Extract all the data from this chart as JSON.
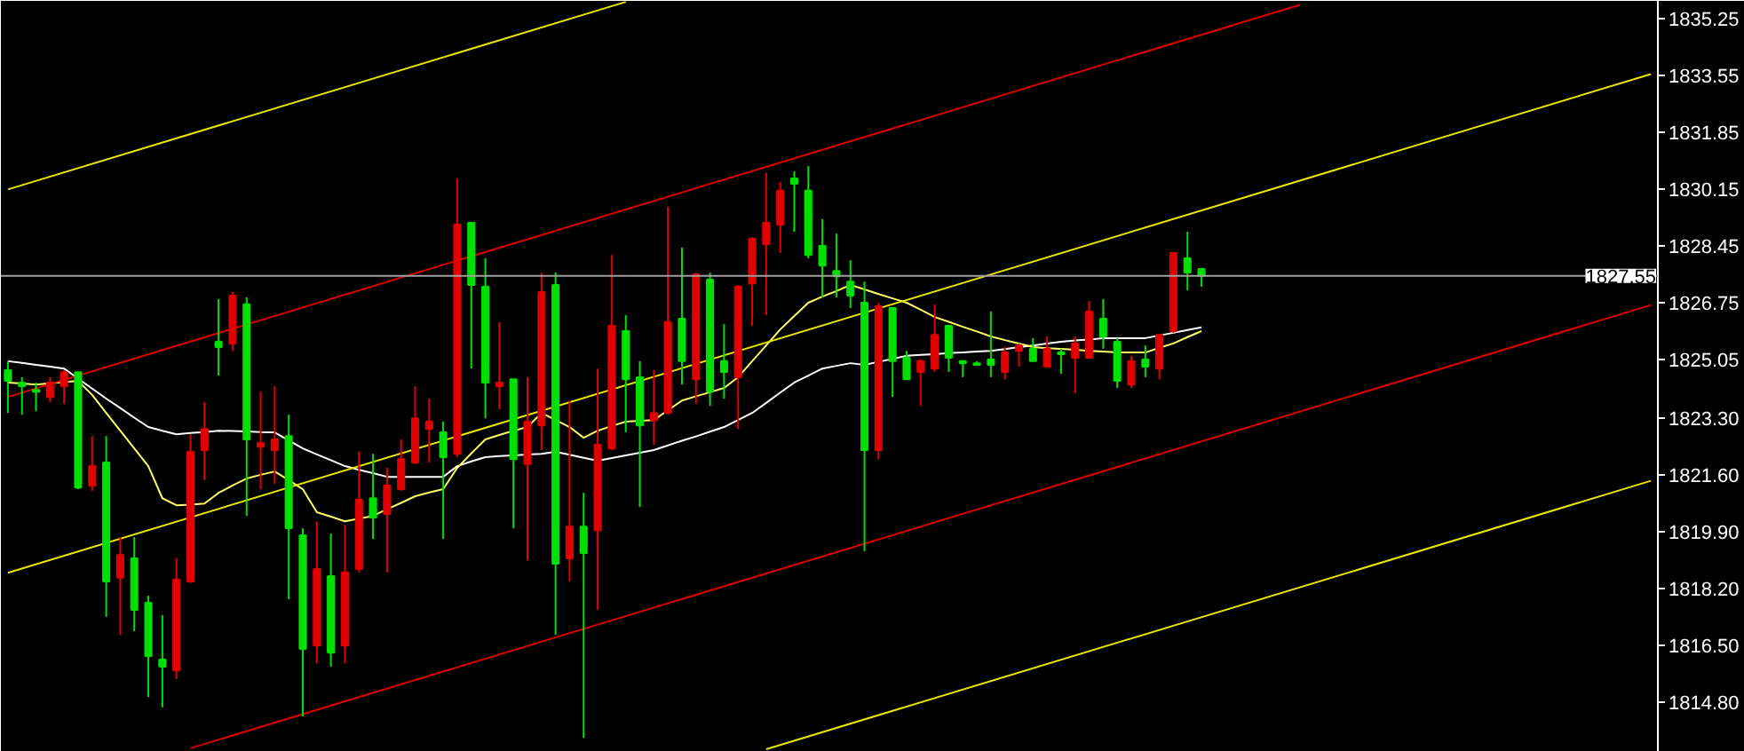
{
  "chart_data": {
    "type": "candlestick",
    "categories": [
      null,
      null,
      null,
      null,
      null,
      null,
      null,
      null,
      null,
      null,
      null,
      null,
      null,
      null,
      null,
      null,
      null,
      null,
      null,
      null,
      null,
      null,
      null,
      null,
      null,
      null,
      null,
      null,
      null,
      null,
      null,
      null,
      null,
      null,
      null,
      null,
      null,
      null,
      null,
      null,
      null,
      null,
      null,
      null,
      null,
      null,
      null,
      null,
      null,
      null,
      null,
      null,
      null,
      null,
      null,
      null,
      null,
      null,
      null,
      null,
      null,
      null,
      null,
      null,
      null,
      null,
      null,
      null,
      null,
      null,
      null,
      null,
      null,
      null,
      null,
      null,
      null,
      null,
      null,
      null,
      null,
      null,
      null,
      null,
      null,
      null,
      null,
      null,
      null,
      null,
      null,
      null,
      null,
      null,
      null,
      null,
      null,
      null,
      null,
      null,
      null,
      null,
      null,
      null,
      null,
      null,
      null,
      null,
      null,
      null,
      null,
      null,
      null,
      null,
      null,
      null,
      null,
      null
    ],
    "ohlc": [
      [
        1824.73,
        1825.0,
        1823.45,
        1824.41
      ],
      [
        1824.36,
        1824.52,
        1823.4,
        1824.25
      ],
      [
        1824.14,
        1824.36,
        1823.5,
        1824.09
      ],
      [
        1823.93,
        1824.52,
        1823.77,
        1824.36
      ],
      [
        1824.25,
        1824.73,
        1823.72,
        1824.67
      ],
      [
        1824.67,
        1824.67,
        1821.17,
        1821.22
      ],
      [
        1821.28,
        1822.76,
        1821.12,
        1821.86
      ],
      [
        1821.97,
        1822.76,
        1817.35,
        1818.41
      ],
      [
        1818.52,
        1819.74,
        1816.81,
        1819.2
      ],
      [
        1819.1,
        1819.74,
        1816.92,
        1817.56
      ],
      [
        1817.77,
        1817.98,
        1814.95,
        1816.18
      ],
      [
        1816.07,
        1817.4,
        1814.64,
        1815.86
      ],
      [
        1815.75,
        1819.1,
        1815.49,
        1818.46
      ],
      [
        1818.41,
        1822.81,
        1818.36,
        1822.29
      ],
      [
        1822.34,
        1823.77,
        1821.44,
        1822.97
      ],
      [
        1825.58,
        1826.86,
        1824.57,
        1825.42
      ],
      [
        1825.53,
        1827.07,
        1825.31,
        1826.96
      ],
      [
        1826.7,
        1826.91,
        1820.37,
        1822.66
      ],
      [
        1822.44,
        1824.09,
        1821.17,
        1822.55
      ],
      [
        1822.34,
        1824.25,
        1821.33,
        1822.66
      ],
      [
        1822.76,
        1823.4,
        1817.88,
        1820.0
      ],
      [
        1819.79,
        1820.0,
        1814.37,
        1816.39
      ],
      [
        1816.49,
        1820.21,
        1815.96,
        1818.78
      ],
      [
        1818.57,
        1819.84,
        1815.86,
        1816.28
      ],
      [
        1816.49,
        1820.11,
        1815.96,
        1818.68
      ],
      [
        1818.78,
        1822.29,
        1818.68,
        1820.85
      ],
      [
        1820.9,
        1822.23,
        1819.68,
        1820.32
      ],
      [
        1820.43,
        1821.81,
        1818.68,
        1821.28
      ],
      [
        1821.17,
        1822.66,
        1821.12,
        1822.07
      ],
      [
        1821.97,
        1824.25,
        1821.92,
        1823.29
      ],
      [
        1822.97,
        1823.88,
        1821.97,
        1823.19
      ],
      [
        1822.87,
        1823.19,
        1819.68,
        1822.13
      ],
      [
        1822.23,
        1830.47,
        1822.13,
        1829.09
      ],
      [
        1829.14,
        1829.14,
        1824.78,
        1827.28
      ],
      [
        1827.23,
        1828.08,
        1823.29,
        1824.36
      ],
      [
        1824.25,
        1826.17,
        1823.56,
        1824.36
      ],
      [
        1824.46,
        1824.46,
        1820.0,
        1822.07
      ],
      [
        1821.92,
        1824.52,
        1819.04,
        1823.19
      ],
      [
        1823.08,
        1827.65,
        1822.34,
        1827.07
      ],
      [
        1827.28,
        1827.65,
        1816.81,
        1818.94
      ],
      [
        1819.1,
        1823.82,
        1818.41,
        1820.05
      ],
      [
        1820.05,
        1821.06,
        1813.73,
        1819.26
      ],
      [
        1819.94,
        1824.78,
        1817.56,
        1822.5
      ],
      [
        1822.39,
        1828.18,
        1822.34,
        1826.06
      ],
      [
        1825.9,
        1826.38,
        1822.87,
        1824.46
      ],
      [
        1824.52,
        1825.0,
        1820.64,
        1823.08
      ],
      [
        1823.24,
        1824.73,
        1822.5,
        1823.45
      ],
      [
        1823.45,
        1829.62,
        1823.4,
        1826.17
      ],
      [
        1826.27,
        1828.4,
        1824.3,
        1825.0
      ],
      [
        1824.46,
        1827.65,
        1823.72,
        1827.6
      ],
      [
        1827.44,
        1827.65,
        1823.66,
        1824.09
      ],
      [
        1825.0,
        1826.11,
        1823.88,
        1824.68
      ],
      [
        1824.52,
        1827.28,
        1822.97,
        1827.23
      ],
      [
        1827.33,
        1828.71,
        1826.06,
        1828.66
      ],
      [
        1828.5,
        1830.63,
        1826.38,
        1829.14
      ],
      [
        1829.09,
        1830.36,
        1828.24,
        1830.1
      ],
      [
        1830.47,
        1830.68,
        1828.87,
        1830.31
      ],
      [
        1830.1,
        1830.84,
        1828.08,
        1828.18
      ],
      [
        1828.45,
        1829.25,
        1826.91,
        1827.86
      ],
      [
        1827.7,
        1828.82,
        1826.91,
        1827.54
      ],
      [
        1827.38,
        1828.02,
        1826.59,
        1826.96
      ],
      [
        1826.75,
        1827.38,
        1819.31,
        1822.34
      ],
      [
        1822.34,
        1826.75,
        1822.07,
        1826.64
      ],
      [
        1826.59,
        1826.59,
        1823.93,
        1825.0
      ],
      [
        1825.1,
        1825.31,
        1824.46,
        1824.46
      ],
      [
        1824.68,
        1825.05,
        1823.66,
        1825.0
      ],
      [
        1824.78,
        1826.7,
        1824.68,
        1825.79
      ],
      [
        1826.06,
        1826.06,
        1824.68,
        1825.1
      ],
      [
        1825.0,
        1825.0,
        1824.52,
        1824.94
      ],
      [
        1824.94,
        1825.0,
        1824.89,
        1824.89
      ],
      [
        1825.05,
        1826.49,
        1824.52,
        1824.89
      ],
      [
        1824.68,
        1825.42,
        1824.46,
        1825.26
      ],
      [
        1825.31,
        1825.53,
        1824.84,
        1825.47
      ],
      [
        1825.37,
        1825.69,
        1825.0,
        1825.0
      ],
      [
        1824.84,
        1825.74,
        1824.84,
        1825.37
      ],
      [
        1825.26,
        1825.37,
        1824.62,
        1825.21
      ],
      [
        1825.1,
        1825.74,
        1824.04,
        1825.53
      ],
      [
        1825.1,
        1826.8,
        1825.1,
        1826.49
      ],
      [
        1826.27,
        1826.86,
        1825.37,
        1825.74
      ],
      [
        1825.58,
        1825.69,
        1824.2,
        1824.41
      ],
      [
        1824.3,
        1825.16,
        1824.2,
        1825.0
      ],
      [
        1825.05,
        1825.47,
        1824.52,
        1824.84
      ],
      [
        1824.78,
        1825.79,
        1824.46,
        1825.79
      ],
      [
        1825.9,
        1828.24,
        1825.85,
        1828.24
      ],
      [
        1828.08,
        1828.87,
        1827.12,
        1827.65
      ],
      [
        1827.76,
        1827.76,
        1827.23,
        1827.55
      ],
      null,
      null,
      null,
      null,
      null,
      null,
      null,
      null,
      null,
      null,
      null,
      null,
      null,
      null,
      null,
      null,
      null,
      null,
      null,
      null,
      null,
      null,
      null,
      null,
      null,
      null,
      null,
      null,
      null,
      null,
      null,
      null
    ],
    "colors": [
      "#00e000",
      "#00e000",
      "#00e000",
      "#e00000",
      "#e00000",
      "#00e000",
      "#e00000",
      "#00e000",
      "#e00000",
      "#00e000",
      "#00e000",
      "#00e000",
      "#e00000",
      "#e00000",
      "#e00000",
      "#00e000",
      "#e00000",
      "#00e000",
      "#e00000",
      "#e00000",
      "#00e000",
      "#00e000",
      "#e00000",
      "#00e000",
      "#e00000",
      "#e00000",
      "#00e000",
      "#e00000",
      "#e00000",
      "#e00000",
      "#e00000",
      "#00e000",
      "#e00000",
      "#00e000",
      "#00e000",
      "#e00000",
      "#00e000",
      "#e00000",
      "#e00000",
      "#00e000",
      "#e00000",
      "#00e000",
      "#e00000",
      "#e00000",
      "#00e000",
      "#00e000",
      "#e00000",
      "#e00000",
      "#00e000",
      "#e00000",
      "#00e000",
      "#00e000",
      "#e00000",
      "#e00000",
      "#e00000",
      "#e00000",
      "#00e000",
      "#00e000",
      "#00e000",
      "#00e000",
      "#00e000",
      "#00e000",
      "#e00000",
      "#00e000",
      "#00e000",
      "#e00000",
      "#e00000",
      "#00e000",
      "#00e000",
      "#00e000",
      "#00e000",
      "#e00000",
      "#e00000",
      "#00e000",
      "#e00000",
      "#00e000",
      "#e00000",
      "#e00000",
      "#00e000",
      "#00e000",
      "#e00000",
      "#00e000",
      "#e00000",
      "#e00000",
      "#00e000",
      "#00e000",
      null,
      null,
      null,
      null,
      null,
      null,
      null,
      null,
      null,
      null,
      null,
      null,
      null,
      null,
      null,
      null,
      null,
      null,
      null,
      null,
      null,
      null,
      null,
      null,
      null,
      null,
      null,
      null,
      null,
      null,
      null,
      null
    ],
    "series": [
      {
        "type": "line",
        "color": "#ffffff",
        "values": [
          1825.0,
          1824.95,
          1824.89,
          1824.84,
          1824.78,
          1824.48,
          1824.18,
          1823.88,
          1823.6,
          1823.31,
          1823.03,
          1822.92,
          1822.81,
          1822.85,
          1822.88,
          1822.92,
          1822.91,
          1822.9,
          1822.88,
          1822.87,
          1822.63,
          1822.39,
          1822.21,
          1822.04,
          1821.86,
          1821.75,
          1821.65,
          1821.54,
          1821.54,
          1821.54,
          1821.54,
          1821.54,
          1821.86,
          1822.0,
          1822.13,
          1822.16,
          1822.18,
          1822.21,
          1822.23,
          1822.29,
          1822.2,
          1822.11,
          1822.02,
          1822.1,
          1822.18,
          1822.26,
          1822.34,
          1822.48,
          1822.62,
          1822.75,
          1822.89,
          1823.03,
          1823.24,
          1823.45,
          1823.75,
          1824.06,
          1824.36,
          1824.57,
          1824.78,
          1824.86,
          1824.94,
          1824.89,
          1824.98,
          1825.07,
          1825.16,
          1825.19,
          1825.21,
          1825.24,
          1825.26,
          1825.29,
          1825.31,
          1825.36,
          1825.42,
          1825.47,
          1825.53,
          1825.58,
          1825.62,
          1825.65,
          1825.69,
          1825.69,
          1825.69,
          1825.69,
          1825.77,
          1825.85,
          1825.93,
          1826.01,
          null,
          null,
          null,
          null,
          null,
          null,
          null,
          null,
          null,
          null,
          null,
          null,
          null,
          null,
          null,
          null,
          null,
          null,
          null,
          null,
          null,
          null,
          null,
          null,
          null,
          null,
          null,
          null,
          null,
          null,
          null,
          null
        ]
      },
      {
        "type": "line",
        "color": "#ffff66",
        "values": [
          1824.36,
          1824.33,
          1824.3,
          1824.34,
          1824.37,
          1824.41,
          1823.99,
          1823.45,
          1822.92,
          1822.39,
          1821.86,
          1820.9,
          1820.69,
          1820.71,
          1820.74,
          1821.06,
          1821.28,
          1821.49,
          1821.6,
          1821.7,
          1821.44,
          1821.17,
          1820.48,
          1820.35,
          1820.21,
          1820.29,
          1820.37,
          1820.57,
          1820.76,
          1820.96,
          1821.07,
          1821.17,
          1821.81,
          1822.24,
          1822.66,
          1822.79,
          1822.92,
          1823.03,
          1823.45,
          1823.24,
          1823.03,
          1822.71,
          1822.92,
          1823.06,
          1823.19,
          1823.22,
          1823.24,
          1823.53,
          1823.82,
          1823.95,
          1824.07,
          1824.2,
          1824.52,
          1825.0,
          1825.47,
          1825.95,
          1826.35,
          1826.75,
          1826.93,
          1827.1,
          1827.28,
          1827.15,
          1827.01,
          1826.88,
          1826.75,
          1826.54,
          1826.32,
          1826.18,
          1826.03,
          1825.89,
          1825.74,
          1825.63,
          1825.53,
          1825.42,
          1825.39,
          1825.37,
          1825.34,
          1825.31,
          1825.29,
          1825.26,
          1825.26,
          1825.26,
          1825.4,
          1825.53,
          1825.72,
          1825.9,
          null,
          null,
          null,
          null,
          null,
          null,
          null,
          null,
          null,
          null,
          null,
          null,
          null,
          null,
          null,
          null,
          null,
          null,
          null,
          null,
          null,
          null,
          null,
          null,
          null,
          null,
          null,
          null,
          null,
          null,
          null,
          null
        ]
      },
      {
        "type": "line",
        "color": "#e8e800",
        "values": [
          1830.14,
          null,
          null,
          null,
          null,
          null,
          null,
          null,
          null,
          null,
          null,
          null,
          null,
          null,
          null,
          null,
          null,
          null,
          null,
          null,
          null,
          null,
          null,
          null,
          null,
          null,
          null,
          null,
          null,
          null,
          null,
          null,
          null,
          null,
          null,
          null,
          null,
          null,
          null,
          null,
          null,
          null,
          null,
          null,
          1835.75,
          null,
          null,
          null,
          null,
          null,
          null,
          null,
          null,
          null,
          null,
          null,
          null,
          null,
          null,
          null,
          null,
          null,
          null,
          null,
          null,
          null,
          null,
          null,
          null,
          null,
          null,
          null,
          null,
          null,
          null,
          null,
          null,
          null,
          null,
          null,
          null,
          null,
          null,
          null,
          null,
          null,
          null,
          null,
          null,
          null,
          null,
          null,
          null,
          null,
          null,
          null,
          null,
          null,
          null,
          null,
          null,
          null,
          null,
          null,
          null,
          null,
          null,
          null,
          null,
          null,
          null,
          null,
          null,
          null,
          null,
          null,
          null,
          null
        ]
      },
      {
        "type": "line",
        "color": "#dd0000",
        "values": [
          1823.93,
          null,
          null,
          null,
          null,
          null,
          null,
          null,
          null,
          null,
          null,
          null,
          null,
          null,
          null,
          null,
          null,
          null,
          null,
          null,
          null,
          null,
          null,
          null,
          null,
          null,
          null,
          null,
          null,
          null,
          null,
          null,
          null,
          null,
          null,
          null,
          null,
          null,
          null,
          null,
          null,
          null,
          null,
          null,
          null,
          null,
          null,
          null,
          null,
          null,
          null,
          null,
          null,
          null,
          null,
          null,
          null,
          null,
          null,
          null,
          null,
          null,
          null,
          null,
          null,
          null,
          null,
          null,
          null,
          null,
          null,
          null,
          null,
          null,
          null,
          null,
          null,
          null,
          null,
          null,
          null,
          null,
          null,
          null,
          null,
          null,
          null,
          null,
          null,
          null,
          null,
          null,
          1835.66,
          null,
          null,
          null,
          null,
          null,
          null,
          null,
          null,
          null,
          null,
          null,
          null,
          null,
          null,
          null,
          null,
          null,
          null,
          null,
          null,
          null,
          null,
          null,
          null,
          null
        ]
      },
      {
        "type": "line",
        "color": "#e8e800",
        "values": [
          1818.67,
          null,
          null,
          null,
          null,
          null,
          null,
          null,
          null,
          null,
          null,
          null,
          null,
          null,
          null,
          null,
          null,
          null,
          null,
          null,
          null,
          null,
          null,
          null,
          null,
          null,
          null,
          null,
          null,
          null,
          null,
          null,
          null,
          null,
          null,
          null,
          null,
          null,
          null,
          null,
          null,
          null,
          null,
          null,
          null,
          null,
          null,
          null,
          null,
          null,
          null,
          null,
          null,
          null,
          null,
          null,
          null,
          null,
          null,
          null,
          null,
          null,
          null,
          null,
          null,
          null,
          null,
          null,
          null,
          null,
          null,
          null,
          null,
          null,
          null,
          null,
          null,
          null,
          null,
          null,
          null,
          null,
          null,
          null,
          null,
          null,
          null,
          null,
          null,
          null,
          null,
          null,
          null,
          null,
          null,
          null,
          null,
          null,
          null,
          null,
          null,
          null,
          null,
          null,
          null,
          null,
          null,
          null,
          null,
          null,
          null,
          null,
          null,
          null,
          null,
          null,
          null,
          1833.59
        ]
      },
      {
        "type": "line",
        "color": "#dd0000",
        "values": [
          null,
          null,
          null,
          null,
          null,
          null,
          null,
          null,
          null,
          null,
          null,
          null,
          null,
          1813.42,
          null,
          null,
          null,
          null,
          null,
          null,
          null,
          null,
          null,
          null,
          null,
          null,
          null,
          null,
          null,
          null,
          null,
          null,
          null,
          null,
          null,
          null,
          null,
          null,
          null,
          null,
          null,
          null,
          null,
          null,
          null,
          null,
          null,
          null,
          null,
          null,
          null,
          null,
          null,
          null,
          null,
          null,
          null,
          null,
          null,
          null,
          null,
          null,
          null,
          null,
          null,
          null,
          null,
          null,
          null,
          null,
          null,
          null,
          null,
          null,
          null,
          null,
          null,
          null,
          null,
          null,
          null,
          null,
          null,
          null,
          null,
          null,
          null,
          null,
          null,
          null,
          null,
          null,
          null,
          null,
          null,
          null,
          null,
          null,
          null,
          null,
          null,
          null,
          null,
          null,
          null,
          null,
          null,
          null,
          null,
          null,
          null,
          null,
          null,
          null,
          null,
          null,
          null,
          1826.68
        ]
      },
      {
        "type": "line",
        "color": "#e8e800",
        "values": [
          null,
          null,
          null,
          null,
          null,
          null,
          null,
          null,
          null,
          null,
          null,
          null,
          null,
          null,
          null,
          null,
          null,
          null,
          null,
          null,
          null,
          null,
          null,
          null,
          null,
          null,
          null,
          null,
          null,
          null,
          null,
          null,
          null,
          null,
          null,
          null,
          null,
          null,
          null,
          null,
          null,
          null,
          null,
          null,
          null,
          null,
          null,
          null,
          null,
          null,
          null,
          null,
          null,
          null,
          1813.39,
          null,
          null,
          null,
          null,
          null,
          null,
          null,
          null,
          null,
          null,
          null,
          null,
          null,
          null,
          null,
          null,
          null,
          null,
          null,
          null,
          null,
          null,
          null,
          null,
          null,
          null,
          null,
          null,
          null,
          null,
          null,
          null,
          null,
          null,
          null,
          null,
          null,
          null,
          null,
          null,
          null,
          null,
          null,
          null,
          null,
          null,
          null,
          null,
          null,
          null,
          null,
          null,
          null,
          null,
          null,
          null,
          null,
          null,
          null,
          null,
          null,
          null,
          1821.42
        ]
      }
    ],
    "ref_lines": [
      {
        "axis": "y",
        "value": 1827.55,
        "label": "1827.55",
        "color": "#a0a0a0"
      }
    ],
    "ylim": [
      1813.31,
      1835.78
    ],
    "yticks": [
      {
        "value": 1835.25,
        "label": "1835.25"
      },
      {
        "value": 1833.55,
        "label": "1833.55"
      },
      {
        "value": 1831.85,
        "label": "1831.85"
      },
      {
        "value": 1830.15,
        "label": "1830.15"
      },
      {
        "value": 1828.45,
        "label": "1828.45"
      },
      {
        "value": 1826.75,
        "label": "1826.75"
      },
      {
        "value": 1825.05,
        "label": "1825.05"
      },
      {
        "value": 1823.3,
        "label": "1823.30"
      },
      {
        "value": 1821.6,
        "label": "1821.60"
      },
      {
        "value": 1819.9,
        "label": "1819.90"
      },
      {
        "value": 1818.2,
        "label": "1818.20"
      },
      {
        "value": 1816.5,
        "label": "1816.50"
      },
      {
        "value": 1814.8,
        "label": "1814.80"
      }
    ],
    "tick_labels": "y",
    "grid": false
  }
}
